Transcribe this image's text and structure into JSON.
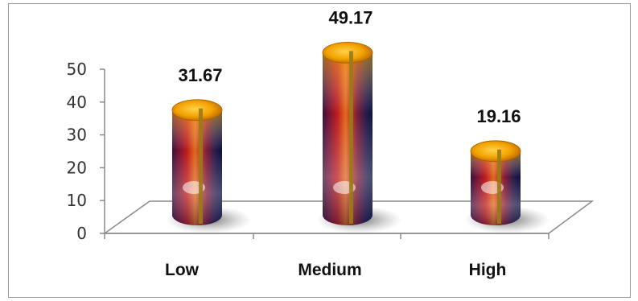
{
  "chart_data": {
    "type": "bar",
    "categories": [
      "Low",
      "Medium",
      "High"
    ],
    "values": [
      31.67,
      49.17,
      19.16
    ],
    "data_labels": [
      "31.67",
      "49.17",
      "19.16"
    ],
    "title": "",
    "xlabel": "",
    "ylabel": "",
    "ylim": [
      0,
      50
    ],
    "yticks": [
      "0",
      "10",
      "20",
      "30",
      "40",
      "50"
    ],
    "grid": false,
    "legend": "none",
    "style": "3d-cylinder"
  }
}
